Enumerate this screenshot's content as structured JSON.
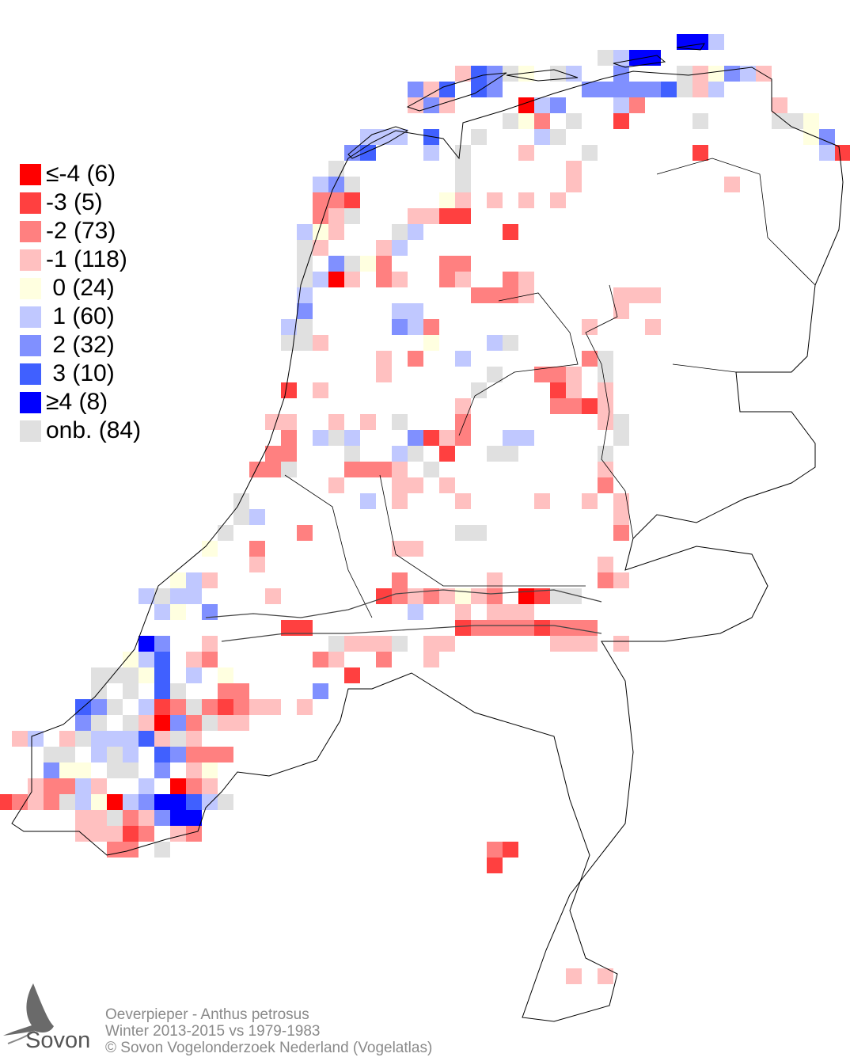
{
  "legend": [
    {
      "label": "≤-4 (6)",
      "color": "#ff0000",
      "code": "a"
    },
    {
      "label": "-3 (5)",
      "color": "#ff4040",
      "code": "b"
    },
    {
      "label": "-2 (73)",
      "color": "#ff8080",
      "code": "c"
    },
    {
      "label": "-1 (118)",
      "color": "#ffc0c0",
      "code": "d"
    },
    {
      "label": " 0 (24)",
      "color": "#ffffe0",
      "code": "e"
    },
    {
      "label": " 1 (60)",
      "color": "#c0c8ff",
      "code": "f"
    },
    {
      "label": " 2 (32)",
      "color": "#8090ff",
      "code": "g"
    },
    {
      "label": " 3 (10)",
      "color": "#4060ff",
      "code": "h"
    },
    {
      "label": "≥4 (8)",
      "color": "#0000ff",
      "code": "i"
    },
    {
      "label": "onb. (84)",
      "color": "#e0e0e0",
      "code": "n"
    }
  ],
  "footer": {
    "species": "Oeverpieper - Anthus petrosus",
    "period": "Winter 2013-2015 vs 1979-1983",
    "copyright": "© Sovon Vogelonderzoek Nederland (Vogelatlas)"
  },
  "logo": {
    "text": "Sovon"
  }
}
